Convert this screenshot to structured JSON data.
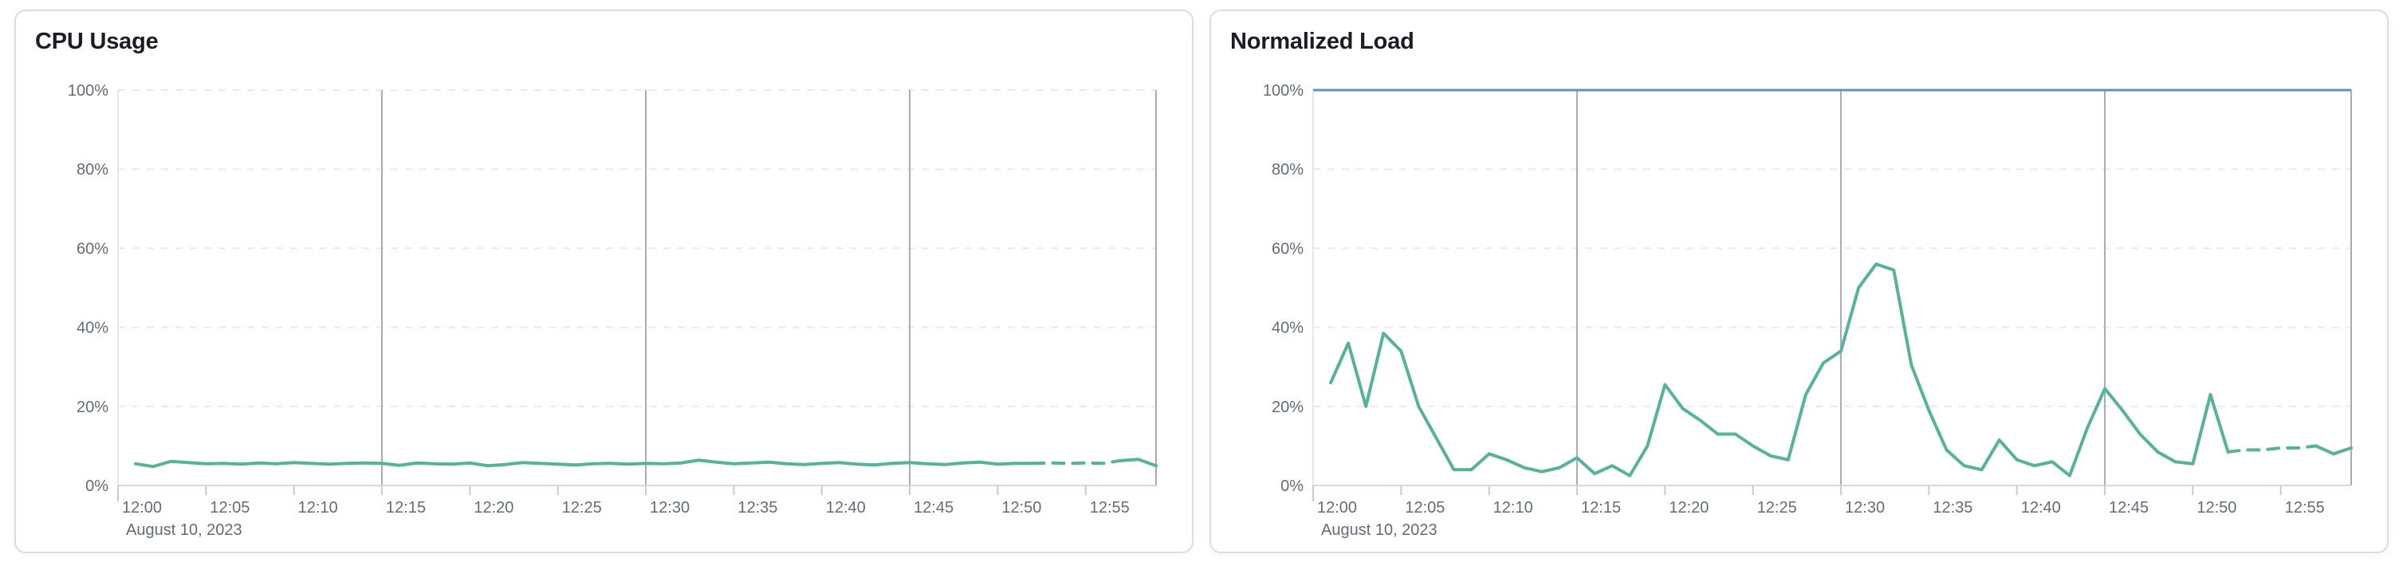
{
  "page": {
    "background": "#ffffff"
  },
  "colors": {
    "series_green": "#54B399",
    "threshold_blue": "#6092C0",
    "grid_dashed": "#E7EAF2",
    "grid_major_vertical": "#A8ABB2",
    "axis_line": "#D3DAE6",
    "plot_left_border": "#E4E8F0",
    "tick_mark": "#C6CBD6",
    "axis_label_text": "#646B78",
    "panel_title_text": "#1A1D26",
    "card_border": "#D8DDE8",
    "card_background": "#ffffff"
  },
  "charts": [
    {
      "panel_name": "cpu-usage-panel",
      "series_color": "#54B399",
      "major_vertical_gridline_minutes": [
        15,
        30,
        45,
        59
      ],
      "dashed_from_index": 51,
      "dashed_to_index": 56,
      "threshold": null
    },
    {
      "panel_name": "normalized-load-panel",
      "series_color": "#54B399",
      "major_vertical_gridline_minutes": [
        15,
        30,
        45,
        59
      ],
      "dashed_from_index": 51,
      "dashed_to_index": 56,
      "threshold": {
        "value": 100,
        "color": "#6092C0"
      }
    }
  ],
  "chart_data": [
    {
      "type": "line",
      "title": "CPU Usage",
      "date_label": "August 10, 2023",
      "x_tick_labels": [
        "12:00",
        "12:05",
        "12:10",
        "12:15",
        "12:20",
        "12:25",
        "12:30",
        "12:35",
        "12:40",
        "12:45",
        "12:50",
        "12:55"
      ],
      "y_tick_labels": [
        "0%",
        "20%",
        "40%",
        "60%",
        "80%",
        "100%"
      ],
      "ylim": [
        0,
        100
      ],
      "unit": "percent",
      "x_domain_minutes": [
        0,
        59
      ],
      "first_point_minute": 1,
      "legend": "none",
      "grid": {
        "horizontal": "dashed",
        "vertical_major": "solid"
      },
      "values": [
        5.5,
        4.8,
        6.1,
        5.8,
        5.5,
        5.6,
        5.4,
        5.7,
        5.5,
        5.8,
        5.6,
        5.4,
        5.6,
        5.7,
        5.6,
        5.1,
        5.7,
        5.5,
        5.4,
        5.7,
        5.0,
        5.3,
        5.8,
        5.6,
        5.4,
        5.2,
        5.5,
        5.6,
        5.4,
        5.6,
        5.5,
        5.7,
        6.4,
        5.9,
        5.5,
        5.7,
        5.9,
        5.5,
        5.3,
        5.6,
        5.8,
        5.4,
        5.2,
        5.6,
        5.8,
        5.5,
        5.3,
        5.7,
        5.9,
        5.4,
        5.6,
        5.6,
        5.7,
        5.6,
        5.7,
        5.6,
        6.3,
        6.6,
        5.0
      ]
    },
    {
      "type": "line",
      "title": "Normalized Load",
      "date_label": "August 10, 2023",
      "x_tick_labels": [
        "12:00",
        "12:05",
        "12:10",
        "12:15",
        "12:20",
        "12:25",
        "12:30",
        "12:35",
        "12:40",
        "12:45",
        "12:50",
        "12:55"
      ],
      "y_tick_labels": [
        "0%",
        "20%",
        "40%",
        "60%",
        "80%",
        "100%"
      ],
      "ylim": [
        0,
        100
      ],
      "unit": "percent",
      "x_domain_minutes": [
        0,
        59
      ],
      "first_point_minute": 1,
      "legend": "none",
      "grid": {
        "horizontal": "dashed",
        "vertical_major": "solid"
      },
      "threshold_line": {
        "value": 100,
        "color": "#6092C0"
      },
      "values": [
        26,
        36,
        20,
        38.5,
        34,
        20,
        12,
        4,
        4,
        8,
        6.5,
        4.5,
        3.5,
        4.5,
        7,
        3,
        5,
        2.5,
        10,
        25.5,
        19.5,
        16.5,
        13,
        13,
        10,
        7.5,
        6.5,
        23,
        31,
        34,
        50,
        56,
        54.5,
        30.5,
        19,
        9,
        5,
        4,
        11.5,
        6.5,
        5,
        6,
        2.5,
        14.5,
        24.5,
        19,
        13,
        8.5,
        6,
        5.5,
        23,
        8.5,
        9,
        9,
        9.5,
        9.5,
        10,
        8,
        9.5
      ]
    }
  ]
}
